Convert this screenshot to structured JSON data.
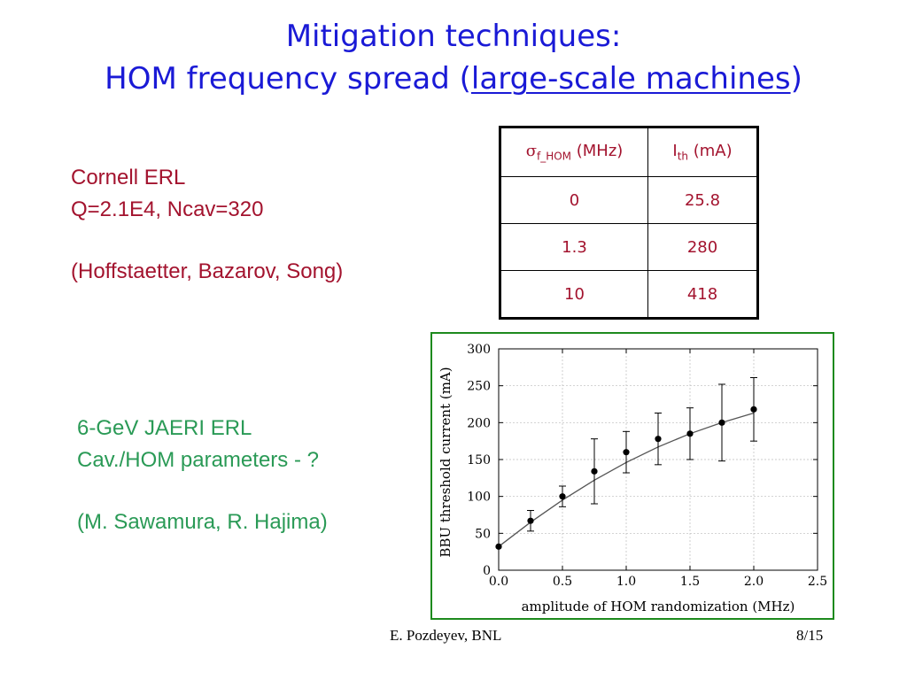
{
  "slide": {
    "title_line1": "Mitigation techniques:",
    "title_line2_prefix": "HOM frequency spread (",
    "title_line2_link": "large-scale machines",
    "title_line2_suffix": ")",
    "cornell": {
      "line1": "Cornell ERL",
      "line2": "Q=2.1E4, Ncav=320",
      "line3": "(Hoffstaetter, Bazarov, Song)"
    },
    "jaeri": {
      "line1": "6-GeV JAERI ERL",
      "line2": "Cav./HOM parameters - ?",
      "line3": "(M. Sawamura, R. Hajima)"
    },
    "table": {
      "header1_symbol": "σ",
      "header1_sub": "f_HOM",
      "header1_unit": " (MHz)",
      "header2_main": "I",
      "header2_sub": "th",
      "header2_unit": " (mA)",
      "rows": [
        [
          "0",
          "25.8"
        ],
        [
          "1.3",
          "280"
        ],
        [
          "10",
          "418"
        ]
      ]
    },
    "footer_author": "E. Pozdeyev, BNL",
    "footer_page": "8/15"
  },
  "chart_data": {
    "type": "scatter",
    "xlabel": "amplitude of HOM randomization (MHz)",
    "ylabel": "BBU threshold current (mA)",
    "xlim": [
      0,
      2.5
    ],
    "ylim": [
      0,
      300
    ],
    "x_ticks": [
      "0.0",
      "0.5",
      "1.0",
      "1.5",
      "2.0",
      "2.5"
    ],
    "y_ticks": [
      "0",
      "50",
      "100",
      "150",
      "200",
      "250",
      "300"
    ],
    "grid": true,
    "points": [
      {
        "x": 0.0,
        "y": 32,
        "err": 0
      },
      {
        "x": 0.25,
        "y": 67,
        "err": 14
      },
      {
        "x": 0.5,
        "y": 100,
        "err": 14
      },
      {
        "x": 0.75,
        "y": 134,
        "err": 44
      },
      {
        "x": 1.0,
        "y": 160,
        "err": 28
      },
      {
        "x": 1.25,
        "y": 178,
        "err": 35
      },
      {
        "x": 1.5,
        "y": 185,
        "err": 35
      },
      {
        "x": 1.75,
        "y": 200,
        "err": 52
      },
      {
        "x": 2.0,
        "y": 218,
        "err": 43
      }
    ],
    "fit_curve": {
      "x": [
        0,
        0.25,
        0.5,
        0.75,
        1.0,
        1.25,
        1.5,
        1.75,
        2.0
      ],
      "y": [
        32,
        65,
        95,
        122,
        146,
        167,
        185,
        200,
        213
      ]
    }
  }
}
